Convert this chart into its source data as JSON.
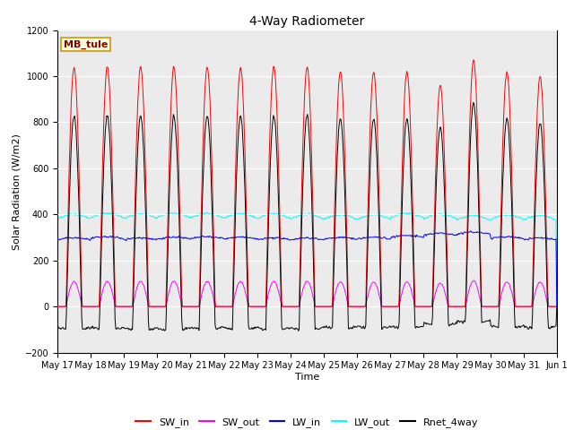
{
  "title": "4-Way Radiometer",
  "xlabel": "Time",
  "ylabel": "Solar Radiation (W/m2)",
  "ylim": [
    -200,
    1200
  ],
  "yticks": [
    -200,
    0,
    200,
    400,
    600,
    800,
    1000,
    1200
  ],
  "station_label": "MB_tule",
  "legend_entries": [
    "SW_in",
    "SW_out",
    "LW_in",
    "LW_out",
    "Rnet_4way"
  ],
  "line_colors": [
    "red",
    "magenta",
    "blue",
    "cyan",
    "black"
  ],
  "x_tick_labels": [
    "May 17",
    "May 18",
    "May 19",
    "May 20",
    "May 21",
    "May 22",
    "May 23",
    "May 24",
    "May 25",
    "May 26",
    "May 27",
    "May 28",
    "May 29",
    "May 30",
    "May 31",
    "Jun 1"
  ],
  "n_days": 15,
  "background_color": "#ebebeb",
  "fig_width": 6.4,
  "fig_height": 4.8,
  "title_fontsize": 10,
  "axis_label_fontsize": 8,
  "tick_fontsize": 7
}
